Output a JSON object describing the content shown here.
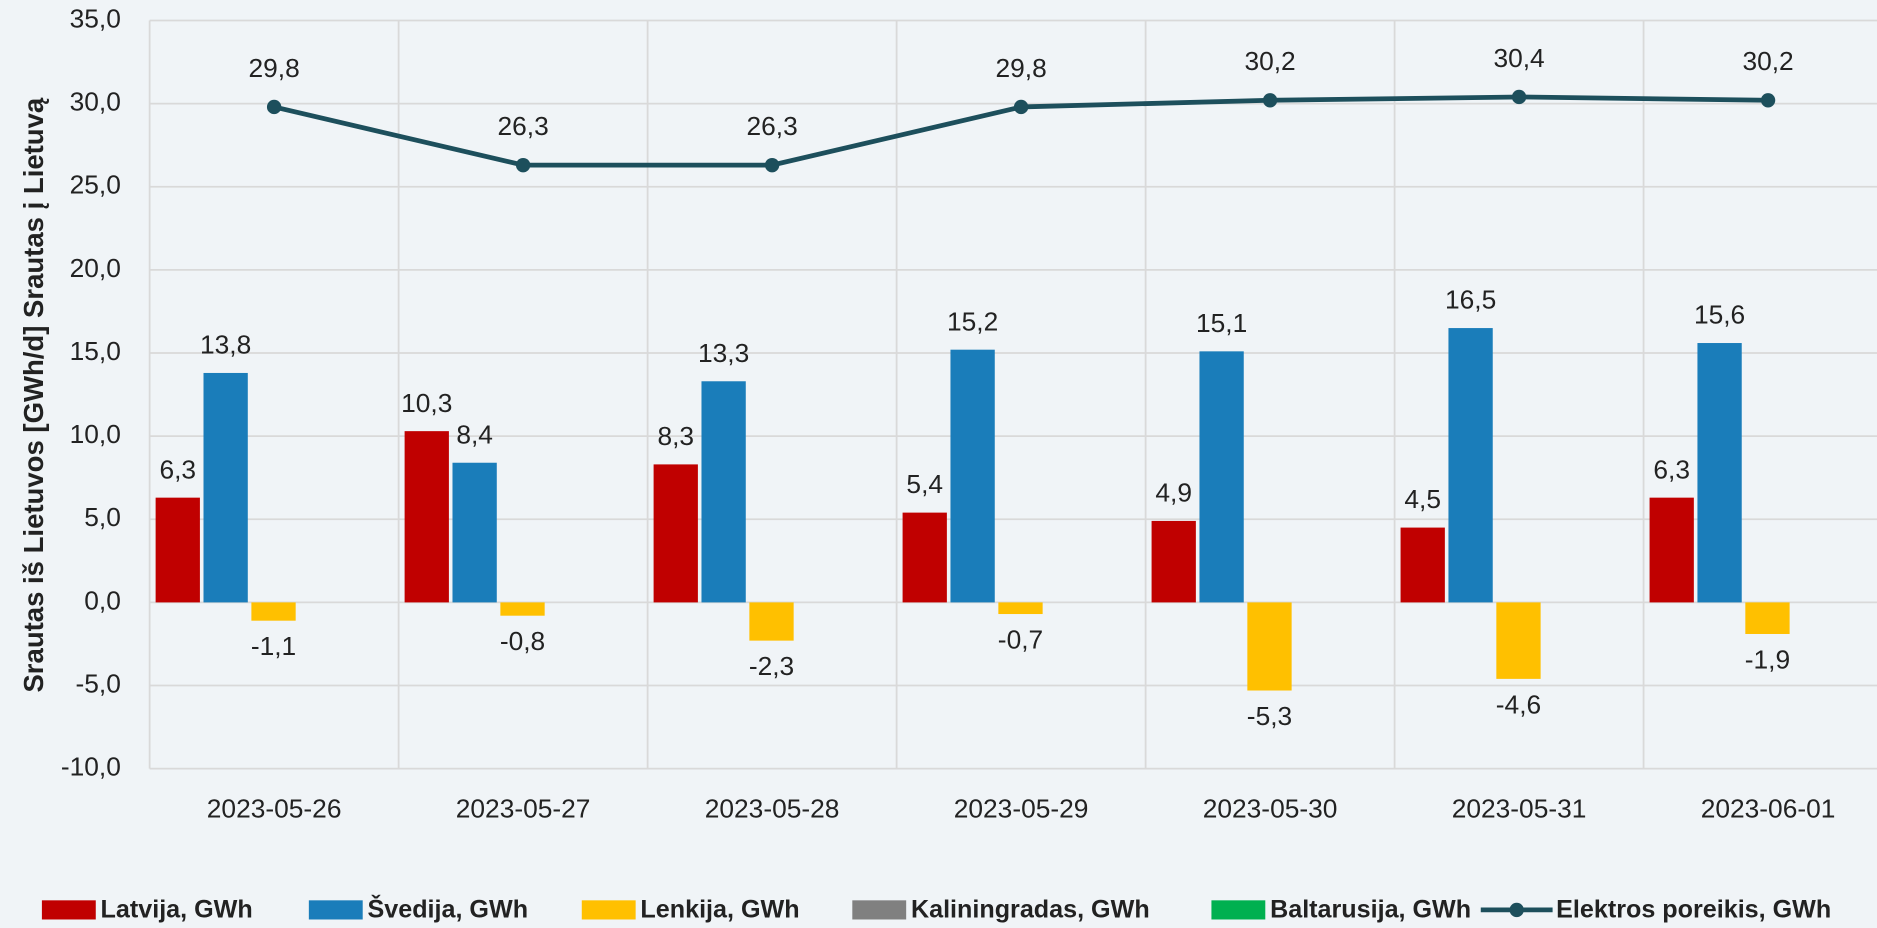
{
  "chart_data": {
    "type": "bar_line",
    "y_axis_label": "Srautas iš Lietuvos [GWh/d] Srautas į Lietuvą",
    "categories": [
      "2023-05-26",
      "2023-05-27",
      "2023-05-28",
      "2023-05-29",
      "2023-05-30",
      "2023-05-31",
      "2023-06-01"
    ],
    "series": [
      {
        "name": "Latvija, GWh",
        "color": "#c00000",
        "type": "bar",
        "values": [
          6.3,
          10.3,
          8.3,
          5.4,
          4.9,
          4.5,
          6.3
        ],
        "value_labels": [
          "6,3",
          "10,3",
          "8,3",
          "5,4",
          "4,9",
          "4,5",
          "6,3"
        ]
      },
      {
        "name": "Švedija, GWh",
        "color": "#1a7dba",
        "type": "bar",
        "values": [
          13.8,
          8.4,
          13.3,
          15.2,
          15.1,
          16.5,
          15.6
        ],
        "value_labels": [
          "13,8",
          "8,4",
          "13,3",
          "15,2",
          "15,1",
          "16,5",
          "15,6"
        ]
      },
      {
        "name": "Lenkija, GWh",
        "color": "#ffc000",
        "type": "bar",
        "values": [
          -1.1,
          -0.8,
          -2.3,
          -0.7,
          -5.3,
          -4.6,
          -1.9
        ],
        "value_labels": [
          "-1,1",
          "-0,8",
          "-2,3",
          "-0,7",
          "-5,3",
          "-4,6",
          "-1,9"
        ]
      },
      {
        "name": "Kaliningradas, GWh",
        "color": "#808080",
        "type": "bar",
        "values": [
          0,
          0,
          0,
          0,
          0,
          0,
          0
        ]
      },
      {
        "name": "Baltarusija, GWh",
        "color": "#00b050",
        "type": "bar",
        "values": [
          0,
          0,
          0,
          0,
          0,
          0,
          0
        ]
      },
      {
        "name": "Elektros poreikis, GWh",
        "color": "#1d4f5c",
        "type": "line",
        "values": [
          29.8,
          26.3,
          26.3,
          29.8,
          30.2,
          30.4,
          30.2
        ],
        "value_labels": [
          "29,8",
          "26,3",
          "26,3",
          "29,8",
          "30,2",
          "30,4",
          "30,2"
        ]
      }
    ],
    "ylim": [
      -10,
      35
    ],
    "yticks": [
      {
        "value": -10,
        "label": "-10,0"
      },
      {
        "value": -5,
        "label": "-5,0"
      },
      {
        "value": 0,
        "label": "0,0"
      },
      {
        "value": 5,
        "label": "5,0"
      },
      {
        "value": 10,
        "label": "10,0"
      },
      {
        "value": 15,
        "label": "15,0"
      },
      {
        "value": 20,
        "label": "20,0"
      },
      {
        "value": 25,
        "label": "25,0"
      },
      {
        "value": 30,
        "label": "30,0"
      },
      {
        "value": 35,
        "label": "35,0"
      }
    ],
    "grid": true,
    "legend": "bottom"
  }
}
